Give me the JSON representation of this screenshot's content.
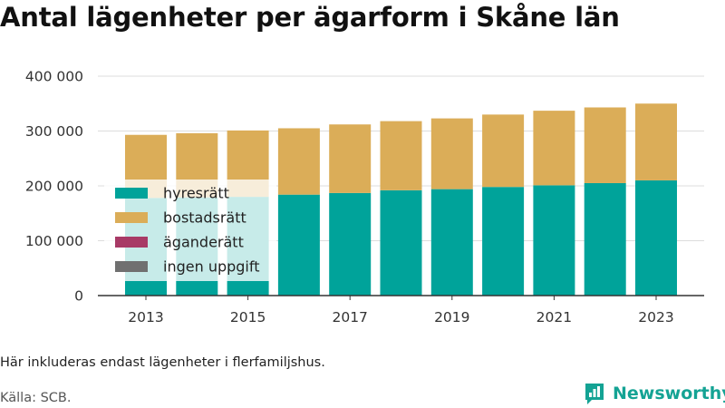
{
  "title": "Antal lägenheter per ägarform i Skåne län",
  "footnote": "Här inkluderas endast lägenheter i flerfamiljshus.",
  "source": "Källa: SCB.",
  "brand": {
    "name": "Newsworthy",
    "icon": "newsworthy-logo-icon",
    "color": "#14a394"
  },
  "chart_data": {
    "type": "bar",
    "stacked": true,
    "categories": [
      "2013",
      "2014",
      "2015",
      "2016",
      "2017",
      "2018",
      "2019",
      "2020",
      "2021",
      "2022",
      "2023"
    ],
    "x_tick_labels": [
      "2013",
      "2015",
      "2017",
      "2019",
      "2021",
      "2023"
    ],
    "y_tick_labels": [
      "0",
      "100 000",
      "200 000",
      "300 000",
      "400 000"
    ],
    "ylim": [
      0,
      400000
    ],
    "grid": true,
    "legend_position": "left",
    "series": [
      {
        "name": "hyresrätt",
        "color": "#00a39a",
        "values": [
          178000,
          179000,
          180000,
          184000,
          187000,
          192000,
          194000,
          198000,
          201000,
          205000,
          210000
        ]
      },
      {
        "name": "bostadsrätt",
        "color": "#dbad58",
        "values": [
          115000,
          117000,
          121000,
          121000,
          125000,
          126000,
          129000,
          132000,
          136000,
          138000,
          140000
        ]
      },
      {
        "name": "äganderätt",
        "color": "#a83a66",
        "values": [
          0,
          0,
          0,
          0,
          0,
          0,
          0,
          0,
          0,
          0,
          0
        ]
      },
      {
        "name": "ingen uppgift",
        "color": "#707070",
        "values": [
          0,
          0,
          0,
          0,
          0,
          0,
          0,
          0,
          0,
          0,
          0
        ]
      }
    ]
  }
}
